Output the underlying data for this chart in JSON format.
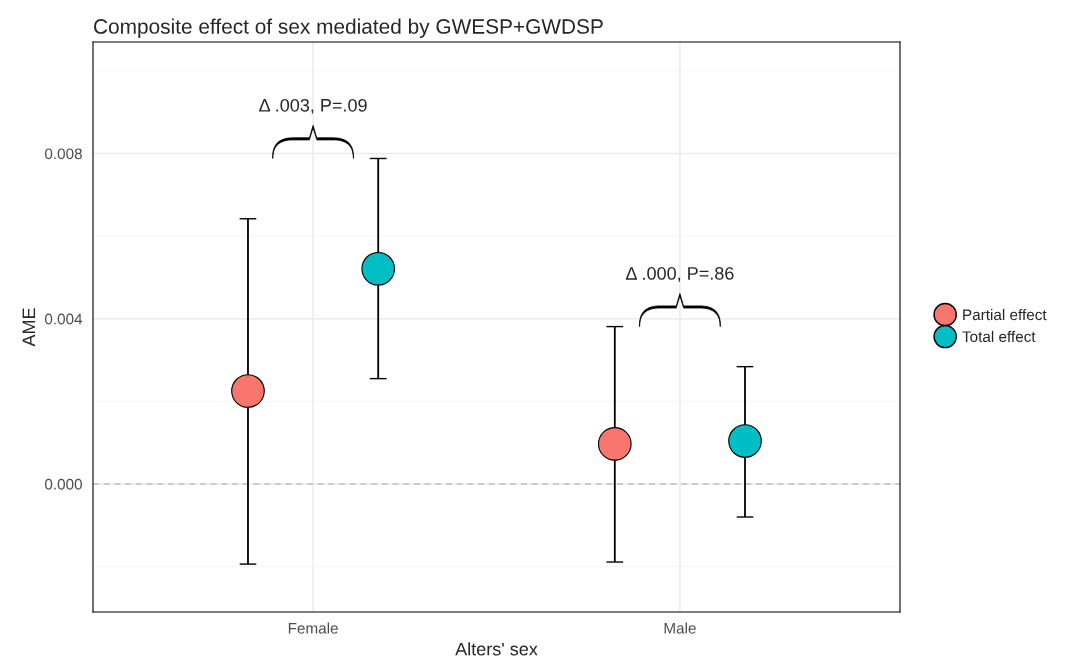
{
  "chart_data": {
    "type": "scatter",
    "title": "Composite effect of sex mediated by GWESP+GWDSP",
    "xlabel": "Alters' sex",
    "ylabel": "AME",
    "categories": [
      "Female",
      "Male"
    ],
    "series": [
      {
        "name": "Partial effect",
        "color": "#f8766d",
        "values": [
          0.00225,
          0.00097
        ],
        "errors": [
          [
            -0.00194,
            0.00642
          ],
          [
            -0.00189,
            0.00381
          ]
        ]
      },
      {
        "name": "Total effect",
        "color": "#00bfc4",
        "values": [
          0.00521,
          0.00104
        ],
        "errors": [
          [
            0.00255,
            0.00788
          ],
          [
            -0.0008,
            0.00284
          ]
        ]
      }
    ],
    "ylim": [
      -0.0031,
      0.0107
    ],
    "yticks": [
      {
        "value": 0,
        "label": "0.000"
      },
      {
        "value": 0.004,
        "label": "0.004"
      },
      {
        "value": 0.008,
        "label": "0.008"
      }
    ],
    "ref_lines": [
      {
        "axis": "y",
        "value": 0,
        "color": "#bebebe",
        "line_style": "dashed"
      }
    ],
    "annotations": [
      "Δ .003, P=.09",
      "Δ .000, P=.86"
    ],
    "grid": true,
    "legend": "right",
    "marker": "circle"
  }
}
